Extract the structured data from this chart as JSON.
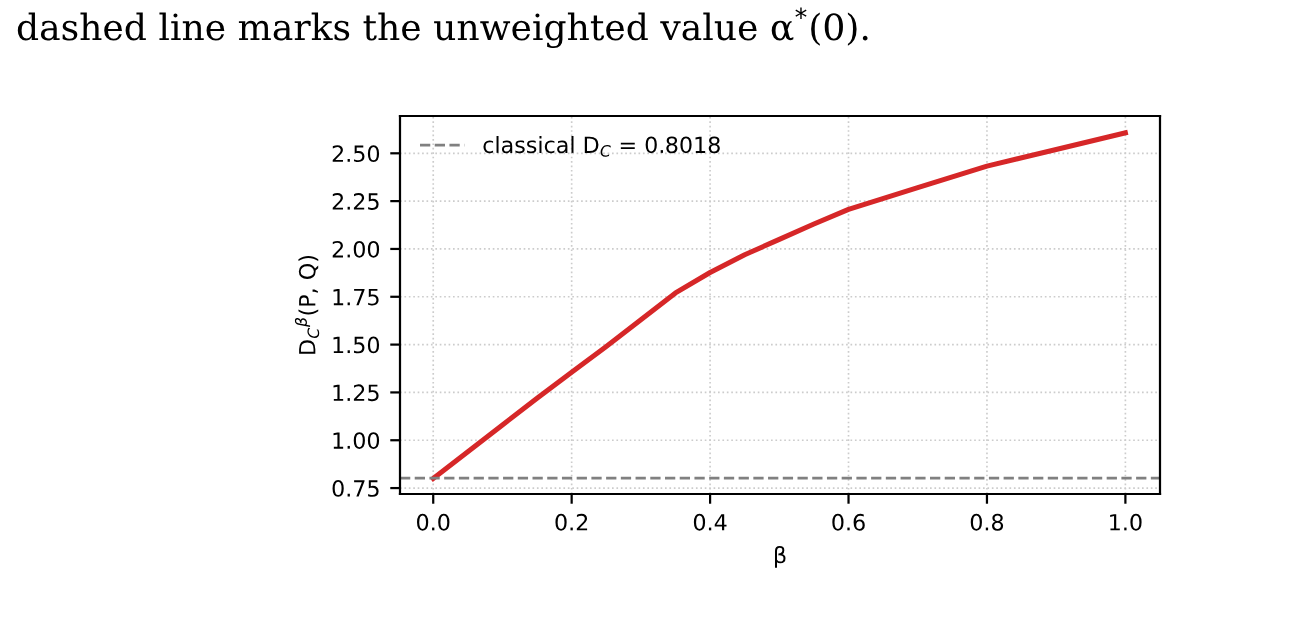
{
  "chart_data": {
    "type": "line",
    "xlabel": "β",
    "ylabel": "D$_{C}$$^{β}$(P, Q)",
    "annotations": [
      "dashed line marks the unweighted value α$^{*}$(0)."
    ],
    "x": [
      0.0,
      0.05,
      0.1,
      0.15,
      0.2,
      0.25,
      0.3,
      0.35,
      0.4,
      0.45,
      0.5,
      0.55,
      0.6,
      0.7,
      0.8,
      0.9,
      1.0
    ],
    "series": [
      {
        "color": "#d62728",
        "values": [
          0.8,
          0.94,
          1.08,
          1.22,
          1.355,
          1.49,
          1.63,
          1.77,
          1.877,
          1.97,
          2.05,
          2.13,
          2.207,
          2.32,
          2.433,
          2.52,
          2.607
        ]
      }
    ],
    "xlim": [
      -0.048,
      1.05
    ],
    "ylim": [
      0.719,
      2.695
    ],
    "xticks": [
      {
        "value": 0.0,
        "label": "0.0"
      },
      0.2,
      0.4,
      0.6,
      0.8,
      {
        "value": 1.0,
        "label": "1.0"
      }
    ],
    "yticks": [
      0.75,
      {
        "value": 1.0,
        "label": "1.00"
      },
      1.25,
      {
        "value": 1.5,
        "label": "1.50"
      },
      1.75,
      {
        "value": 2.0,
        "label": "2.00"
      },
      2.25,
      {
        "value": 2.5,
        "label": "2.50"
      }
    ],
    "ref_lines": [
      {
        "axis": "y",
        "value": 0.8018,
        "label": "classical D$_{C}$ = 0.8018",
        "color": "#808080",
        "line_style": "dashed"
      }
    ],
    "grid": true,
    "legend": "top left",
    "marker": "none",
    "line_style": "solid"
  }
}
